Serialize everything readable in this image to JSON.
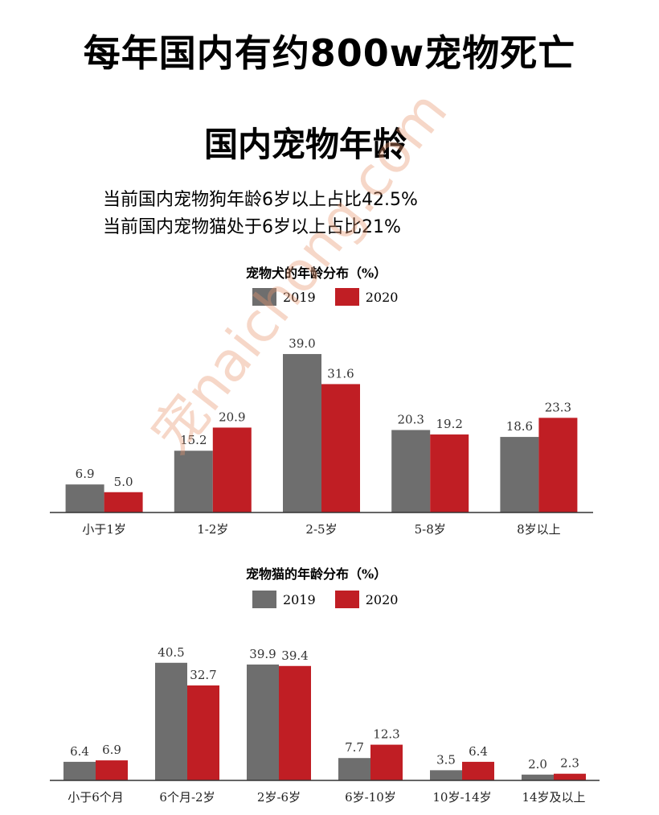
{
  "header": {
    "headline": "每年国内有约800w宠物死亡",
    "subheadline": "国内宠物年龄",
    "stat_dog": "当前国内宠物狗年龄6岁以上占比42.5%",
    "stat_cat": "当前国内宠物猫处于6岁以上占比21%"
  },
  "colors": {
    "series_2019": "#6e6e6e",
    "series_2020": "#c01e24",
    "axis": "#333333"
  },
  "watermark": "宠naichong.com",
  "chart_data": [
    {
      "type": "bar",
      "title": "宠物犬的年龄分布（%）",
      "legend_position": "top-center",
      "categories": [
        "小于1岁",
        "1-2岁",
        "2-5岁",
        "5-8岁",
        "8岁以上"
      ],
      "series": [
        {
          "name": "2019",
          "values": [
            6.9,
            15.2,
            39.0,
            20.3,
            18.6
          ],
          "labels": [
            "6.9",
            "15.2",
            "39.0",
            "20.3",
            "18.6"
          ]
        },
        {
          "name": "2020",
          "values": [
            5.0,
            20.9,
            31.6,
            19.2,
            23.3
          ],
          "labels": [
            "5.0",
            "20.9",
            "31.6",
            "19.2",
            "23.3"
          ]
        }
      ],
      "ylim": [
        0,
        40
      ],
      "grid": false
    },
    {
      "type": "bar",
      "title": "宠物猫的年龄分布（%）",
      "legend_position": "top-center",
      "categories": [
        "小于6个月",
        "6个月-2岁",
        "2岁-6岁",
        "6岁-10岁",
        "10岁-14岁",
        "14岁及以上"
      ],
      "series": [
        {
          "name": "2019",
          "values": [
            6.4,
            40.5,
            39.9,
            7.7,
            3.5,
            2.0
          ],
          "labels": [
            "6.4",
            "40.5",
            "39.9",
            "7.7",
            "3.5",
            "2.0"
          ]
        },
        {
          "name": "2020",
          "values": [
            6.9,
            32.7,
            39.4,
            12.3,
            6.4,
            2.3
          ],
          "labels": [
            "6.9",
            "32.7",
            "39.4",
            "12.3",
            "6.4",
            "2.3"
          ]
        }
      ],
      "ylim": [
        0,
        41
      ],
      "grid": false
    }
  ]
}
